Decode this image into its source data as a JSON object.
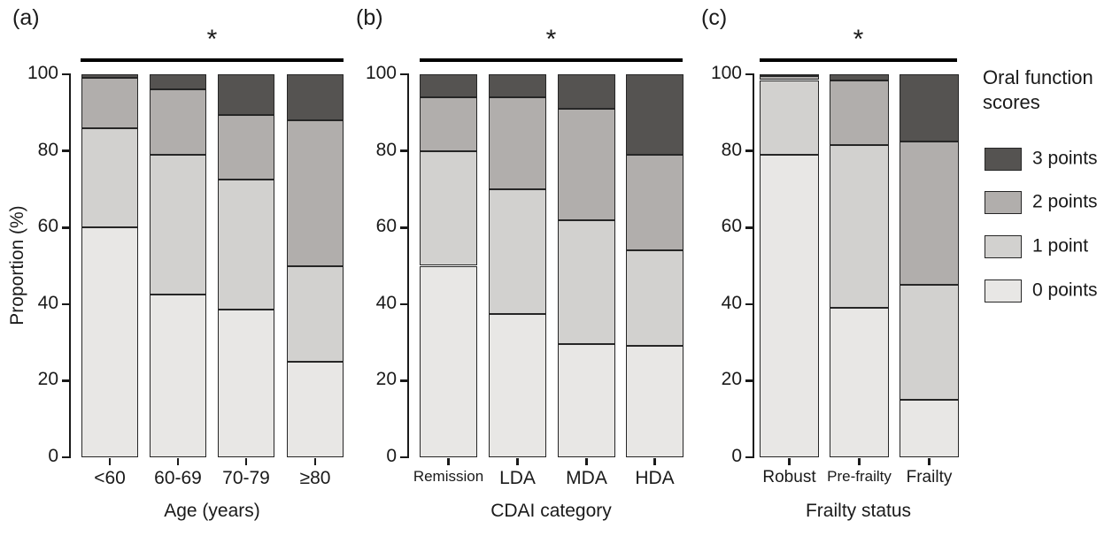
{
  "figure": {
    "background": "#ffffff",
    "significance_marker": "*"
  },
  "colors": {
    "0_points": "#e8e7e5",
    "1_point": "#d2d1cf",
    "2_points": "#b1aeac",
    "3_points": "#555351",
    "bar_border": "#262626",
    "axis": "#1a1a1a",
    "significance_line": "#000000"
  },
  "legend": {
    "title": "Oral function scores",
    "items": [
      {
        "label": "3 points",
        "color": "#555351"
      },
      {
        "label": "2 points",
        "color": "#b1aeac"
      },
      {
        "label": "1 point",
        "color": "#d2d1cf"
      },
      {
        "label": "0 points",
        "color": "#e8e7e5"
      }
    ]
  },
  "chart_data": [
    {
      "type": "bar",
      "stacked": true,
      "panel_letter": "(a)",
      "significance": "*",
      "xlabel": "Age (years)",
      "ylabel": "Proportion (%)",
      "ylim": [
        0,
        100
      ],
      "yticks": [
        0,
        20,
        40,
        60,
        80,
        100
      ],
      "grid": false,
      "categories": [
        "<60",
        "60-69",
        "70-79",
        "≥80"
      ],
      "series": [
        {
          "name": "0 points",
          "values": [
            60.0,
            42.5,
            38.5,
            25.0
          ]
        },
        {
          "name": "1 point",
          "values": [
            26.0,
            36.5,
            34.0,
            25.0
          ]
        },
        {
          "name": "2 points",
          "values": [
            13.0,
            17.0,
            17.0,
            38.0
          ]
        },
        {
          "name": "3 points",
          "values": [
            1.0,
            4.0,
            10.5,
            12.0
          ]
        }
      ]
    },
    {
      "type": "bar",
      "stacked": true,
      "panel_letter": "(b)",
      "significance": "*",
      "xlabel": "CDAI category",
      "ylabel": "",
      "ylim": [
        0,
        100
      ],
      "yticks": [
        0,
        20,
        40,
        60,
        80,
        100
      ],
      "grid": false,
      "categories": [
        "Remission",
        "LDA",
        "MDA",
        "HDA"
      ],
      "series": [
        {
          "name": "0 points",
          "values": [
            50.0,
            37.5,
            29.5,
            29.0
          ]
        },
        {
          "name": "1 point",
          "values": [
            30.0,
            32.5,
            32.5,
            25.0
          ]
        },
        {
          "name": "2 points",
          "values": [
            14.0,
            24.0,
            29.0,
            25.0
          ]
        },
        {
          "name": "3 points",
          "values": [
            6.0,
            6.0,
            9.0,
            21.0
          ]
        }
      ]
    },
    {
      "type": "bar",
      "stacked": true,
      "panel_letter": "(c)",
      "significance": "*",
      "xlabel": "Frailty status",
      "ylabel": "",
      "ylim": [
        0,
        100
      ],
      "yticks": [
        0,
        20,
        40,
        60,
        80,
        100
      ],
      "grid": false,
      "categories": [
        "Robust",
        "Pre-frailty",
        "Frailty"
      ],
      "series": [
        {
          "name": "0 points",
          "values": [
            79.0,
            39.0,
            15.0
          ]
        },
        {
          "name": "1 point",
          "values": [
            19.5,
            42.5,
            30.0
          ]
        },
        {
          "name": "2 points",
          "values": [
            1.0,
            17.0,
            37.5
          ]
        },
        {
          "name": "3 points",
          "values": [
            0.5,
            1.5,
            17.5
          ]
        }
      ]
    }
  ]
}
